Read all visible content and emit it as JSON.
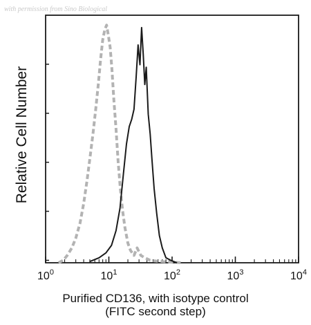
{
  "watermark": "with permission from Sino Biological",
  "chart_data": {
    "type": "line",
    "ylabel": "Relative Cell Number",
    "xlabel_lines": [
      "Purified CD136, with isotype control",
      "(FITC second step)"
    ],
    "xscale": "log",
    "xlim": [
      1,
      10000
    ],
    "xticks": [
      {
        "base": "10",
        "exp": "0",
        "value": 1
      },
      {
        "base": "10",
        "exp": "1",
        "value": 10
      },
      {
        "base": "10",
        "exp": "2",
        "value": 100
      },
      {
        "base": "10",
        "exp": "3",
        "value": 1000
      },
      {
        "base": "10",
        "exp": "4",
        "value": 10000
      }
    ],
    "ylim": [
      0,
      100
    ],
    "yticks_labeled": false,
    "series": [
      {
        "style": "dashed",
        "color": "#b3b3b3",
        "x": [
          1.6,
          1.9,
          2.2,
          2.6,
          3.0,
          3.5,
          4.0,
          4.5,
          5.0,
          5.6,
          6.2,
          6.8,
          7.4,
          8.0,
          8.6,
          9.2,
          9.8,
          10.5,
          11.2,
          12.0,
          13.0,
          14.0,
          15.2,
          16.5,
          18.0,
          20.0,
          22.0,
          25.0,
          28.0,
          32.0,
          37.0,
          45.0,
          60.0,
          80.0,
          100.0,
          150.0
        ],
        "y": [
          0,
          1,
          3,
          6,
          10,
          16,
          24,
          33,
          42,
          52,
          62,
          72,
          82,
          90,
          94,
          96,
          92,
          87,
          78,
          66,
          54,
          41,
          30,
          21,
          14,
          8,
          5,
          3,
          6,
          3,
          2,
          1,
          0.6,
          0.4,
          0.2,
          0
        ]
      },
      {
        "style": "solid",
        "color": "#1a1a1a",
        "x": [
          5.0,
          7.0,
          9.0,
          11.0,
          13.0,
          15.0,
          17.0,
          19.0,
          21.0,
          23.0,
          25.0,
          27.0,
          29.0,
          31.0,
          33.0,
          35.0,
          37.0,
          39.0,
          42.0,
          45.0,
          48.0,
          52.0,
          57.0,
          63.0,
          70.0,
          80.0,
          95.0,
          120.0
        ],
        "y": [
          0.5,
          2,
          4,
          7,
          13,
          22,
          36,
          48,
          55,
          58,
          62,
          75,
          88,
          80,
          95,
          84,
          72,
          79,
          60,
          52,
          42,
          30,
          20,
          11,
          6,
          2,
          1,
          0
        ]
      }
    ]
  }
}
